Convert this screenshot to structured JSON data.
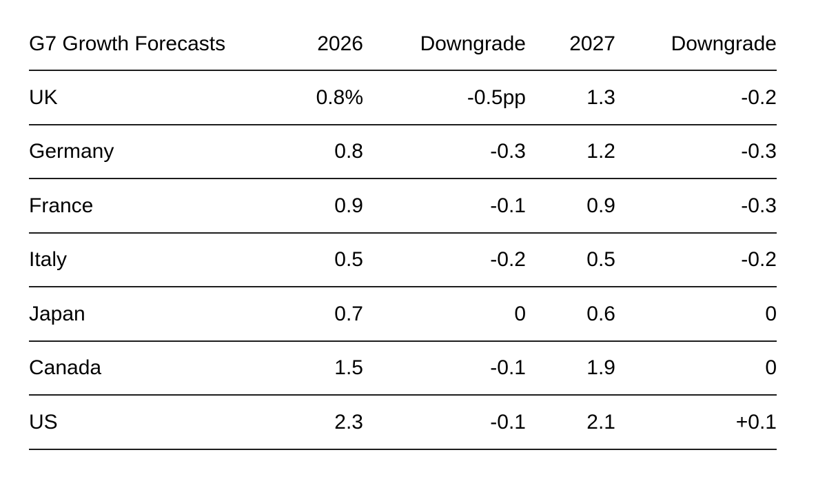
{
  "page": {
    "background": "#ffffff"
  },
  "style_tokens": {
    "text_color": "#000000",
    "rule_color": "#1c1c1c"
  },
  "chart_data": {
    "type": "table",
    "title": "G7 Growth Forecasts",
    "columns": [
      "G7 Growth Forecasts",
      "2026",
      "Downgrade",
      "2027",
      "Downgrade"
    ],
    "rows": [
      [
        "UK",
        "0.8%",
        "-0.5pp",
        "1.3",
        "-0.2"
      ],
      [
        "Germany",
        "0.8",
        "-0.3",
        "1.2",
        "-0.3"
      ],
      [
        "France",
        "0.9",
        "-0.1",
        "0.9",
        "-0.3"
      ],
      [
        "Italy",
        "0.5",
        "-0.2",
        "0.5",
        "-0.2"
      ],
      [
        "Japan",
        "0.7",
        "0",
        "0.6",
        "0"
      ],
      [
        "Canada",
        "1.5",
        "-0.1",
        "1.9",
        "0"
      ],
      [
        "US",
        "2.3",
        "-0.1",
        "2.1",
        "+0.1"
      ]
    ],
    "layout": {
      "grid": "horizontal-rules-only",
      "numeric_alignment": "right",
      "label_alignment": "left",
      "units_note_first_row": "values shown as % growth and pp (percentage point) downgrades"
    }
  }
}
